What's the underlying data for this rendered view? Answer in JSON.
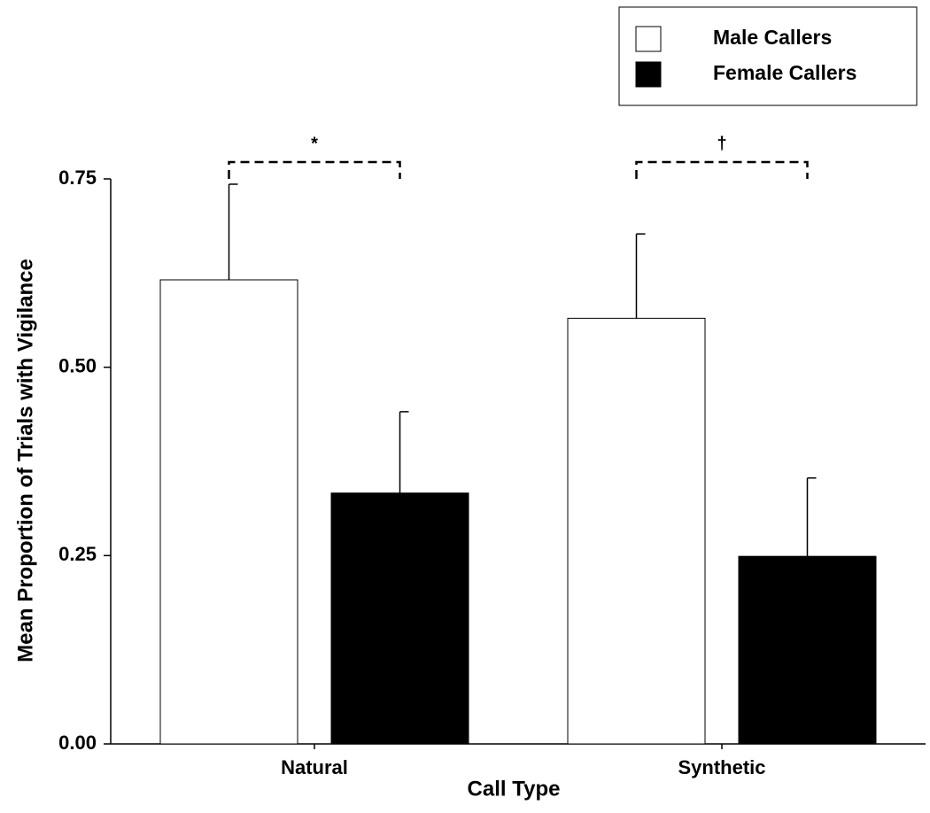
{
  "chart_data": {
    "type": "bar",
    "x_label": "Call Type",
    "y_label": "Mean Proportion of Trials with Vigilance",
    "categories": [
      "Natural",
      "Synthetic"
    ],
    "series": [
      {
        "name": "Male Callers",
        "color": "#ffffff",
        "values": [
          0.616,
          0.565
        ],
        "errors": [
          0.127,
          0.112
        ]
      },
      {
        "name": "Female Callers",
        "color": "#000000",
        "values": [
          0.333,
          0.249
        ],
        "errors": [
          0.108,
          0.104
        ]
      }
    ],
    "annotations": [
      "*",
      "†"
    ],
    "ylim": [
      0,
      0.75
    ],
    "yticks": [
      {
        "value": 0,
        "label": "0.00"
      },
      {
        "value": 0.25,
        "label": "0.25"
      },
      {
        "value": 0.5,
        "label": "0.50"
      },
      {
        "value": 0.75,
        "label": "0.75"
      }
    ],
    "legend": "upper right"
  }
}
